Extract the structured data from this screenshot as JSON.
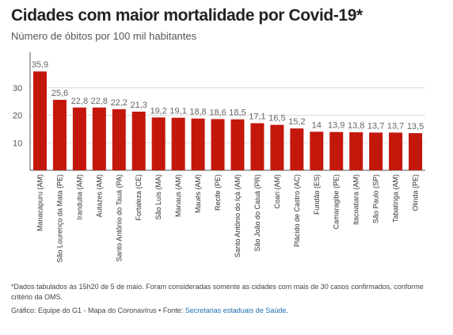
{
  "title": "Cidades com maior mortalidade por Covid-19*",
  "subtitle": "Número de óbitos por 100 mil habitantes",
  "footnote": "*Dados tabulados às 15h20 de 5 de maio. Foram consideradas somente as cidades com mais de 30 casos confirmados, conforme critério da OMS.",
  "credit": {
    "prefix": "Gráfico: Equipe do G1 - Mapa do Coronavírus • Fonte: ",
    "link": "Secretarias estaduais de Saúde",
    "suffix": "."
  },
  "colors": {
    "bar": "#c4170c",
    "grid": "#dddddd",
    "axis": "#555555"
  },
  "chart_data": {
    "type": "bar",
    "categories": [
      "Manacapuru (AM)",
      "São Lourenço da Mata (PE)",
      "Iranduba (AM)",
      "Autazes (AM)",
      "Santo Antônio do Tauá (PA)",
      "Fortaleza (CE)",
      "São Luís (MA)",
      "Manaus (AM)",
      "Maués (AM)",
      "Recife (PE)",
      "Santo Antônio do Içá (AM)",
      "São João do Caiuá (PR)",
      "Coari (AM)",
      "Plácido de Castro (AC)",
      "Fundão (ES)",
      "Camaragibe (PE)",
      "Itacoatiara (AM)",
      "São Paulo (SP)",
      "Tabatinga (AM)",
      "Olinda (PE)"
    ],
    "values": [
      35.9,
      25.6,
      22.8,
      22.8,
      22.2,
      21.3,
      19.2,
      19.1,
      18.8,
      18.6,
      18.5,
      17.1,
      16.5,
      15.2,
      14,
      13.9,
      13.8,
      13.7,
      13.7,
      13.5
    ],
    "value_labels": [
      "35,9",
      "25,6",
      "22,8",
      "22,8",
      "22,2",
      "21,3",
      "19,2",
      "19,1",
      "18,8",
      "18,6",
      "18,5",
      "17,1",
      "16,5",
      "15,2",
      "14",
      "13,9",
      "13,8",
      "13,7",
      "13,7",
      "13,5"
    ],
    "yticks": [
      10,
      20,
      30
    ],
    "ylim": [
      0,
      40
    ],
    "grid": true,
    "xlabel": "",
    "ylabel": ""
  }
}
